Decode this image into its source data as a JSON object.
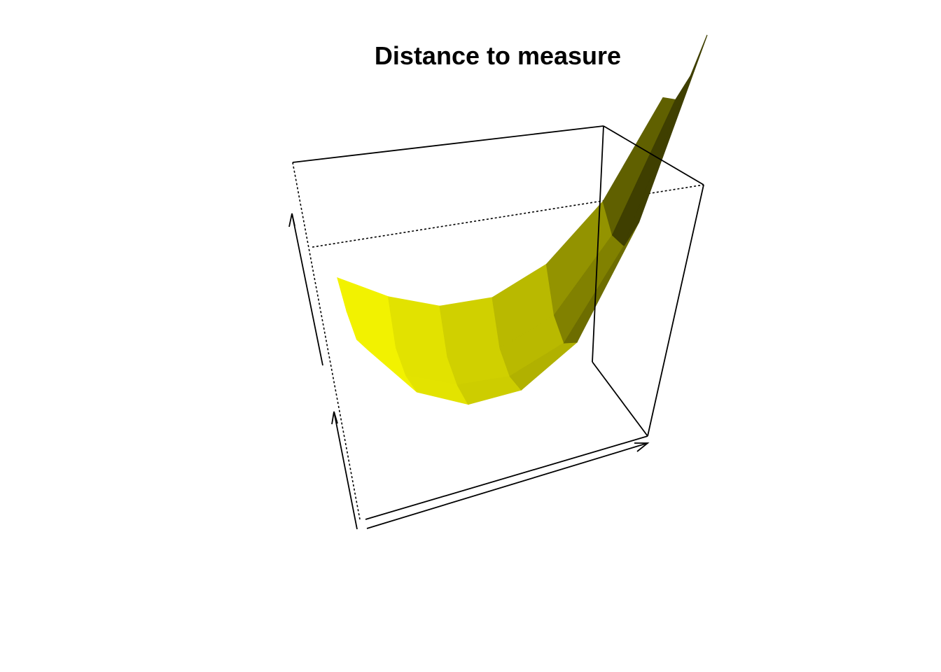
{
  "chart_data": {
    "type": "surface",
    "title": "Distance to measure",
    "xlabel": "",
    "ylabel": "",
    "zlabel": "",
    "box": true,
    "axis_arrows": true,
    "tick_labels": false,
    "surface_color": "#f2f200",
    "shade_color": "#3f3f00",
    "grid_rows": 4,
    "grid_cols": 7,
    "z_values": [
      [
        0.3,
        0.22,
        0.16,
        0.14,
        0.18,
        0.3,
        0.55
      ],
      [
        0.26,
        0.12,
        0.06,
        0.04,
        0.08,
        0.26,
        0.62
      ],
      [
        0.24,
        0.1,
        0.04,
        0.02,
        0.06,
        0.3,
        0.78
      ],
      [
        0.28,
        0.12,
        0.05,
        0.05,
        0.14,
        0.46,
        1.0
      ]
    ]
  }
}
